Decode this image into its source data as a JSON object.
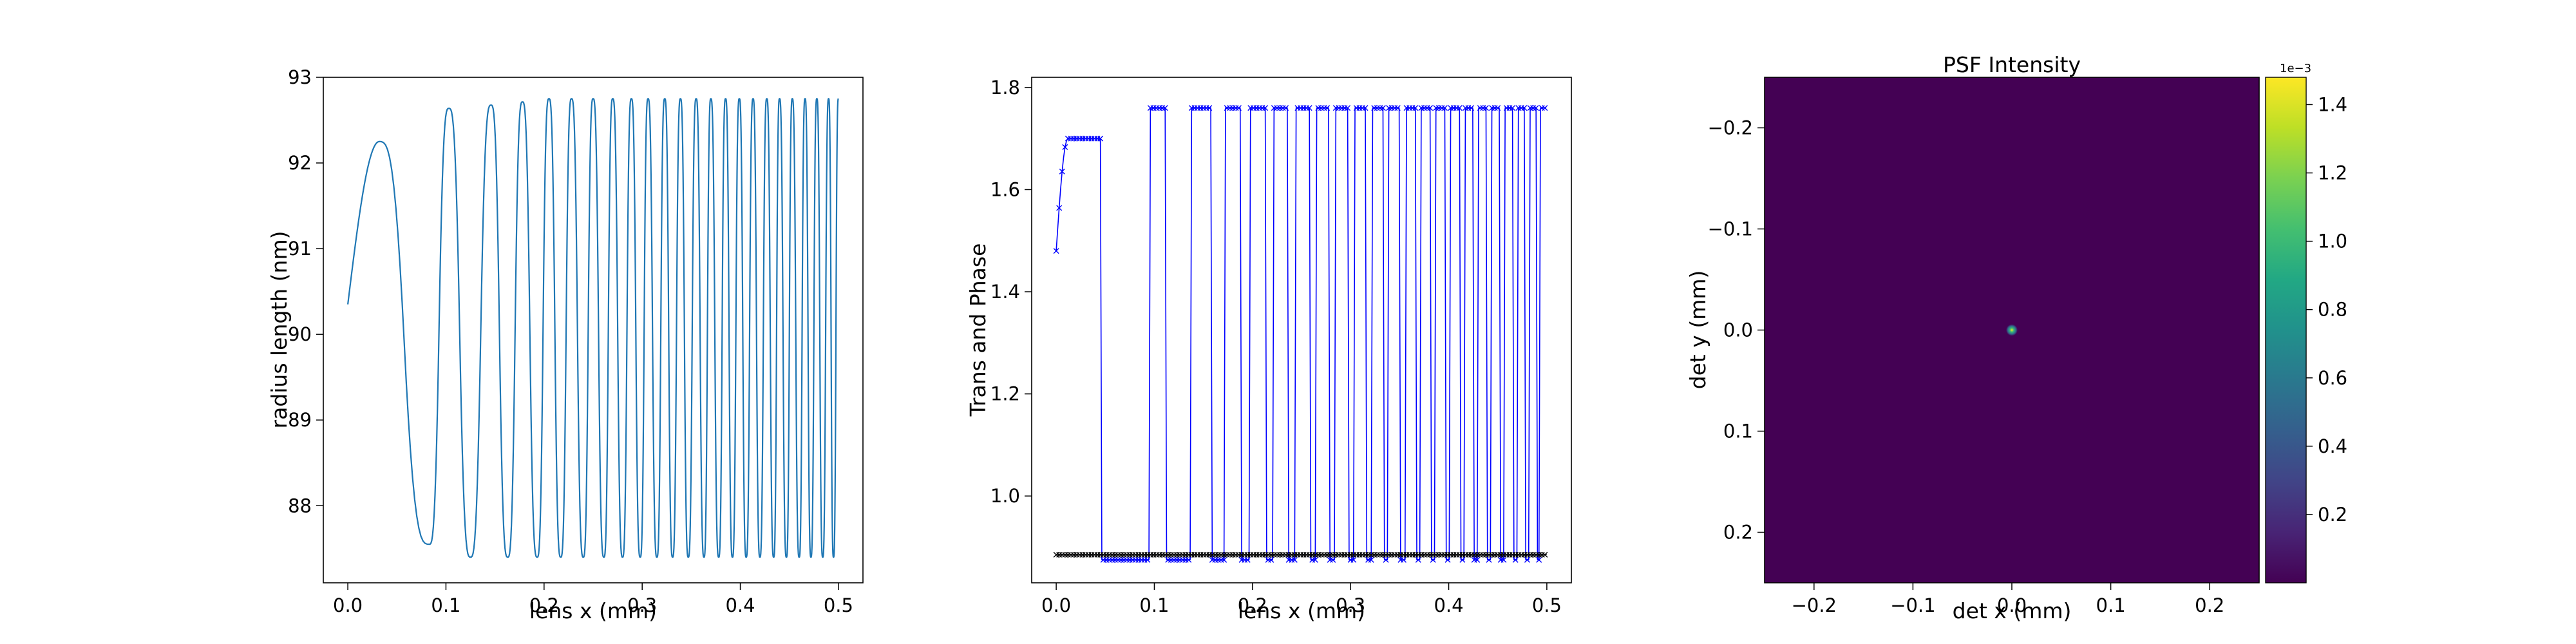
{
  "chart_data": [
    {
      "type": "line",
      "xlabel": "lens x (mm)",
      "ylabel": "radius length (nm)",
      "xlim": [
        -0.025,
        0.525
      ],
      "ylim": [
        87.1,
        93.0
      ],
      "xticks": [
        0.0,
        0.1,
        0.2,
        0.3,
        0.4,
        0.5
      ],
      "xtick_labels": [
        "0.0",
        "0.1",
        "0.2",
        "0.3",
        "0.4",
        "0.5"
      ],
      "yticks": [
        88,
        89,
        90,
        91,
        92,
        93
      ],
      "ytick_labels": [
        "88",
        "89",
        "90",
        "91",
        "92",
        "93"
      ],
      "grid": false,
      "series": [
        {
          "color": "#1f77b4",
          "style": "chirp oscillation",
          "x_start": 0.0,
          "x_end": 0.5,
          "start_value": 90.35,
          "min": 87.4,
          "max": 92.75,
          "first_peak": {
            "x": 0.032,
            "y": 92.25
          },
          "approx_peaks_x": [
            0.032,
            0.103,
            0.146,
            0.178,
            0.205,
            0.228,
            0.25,
            0.27,
            0.289,
            0.306,
            0.323,
            0.339,
            0.355,
            0.37,
            0.385,
            0.399,
            0.413,
            0.427,
            0.44,
            0.453,
            0.466,
            0.478,
            0.49,
            0.5
          ],
          "approx_troughs_x": [
            0.083,
            0.125,
            0.163,
            0.193,
            0.217,
            0.24,
            0.261,
            0.28,
            0.298,
            0.315,
            0.331,
            0.347,
            0.363,
            0.378,
            0.392,
            0.406,
            0.42,
            0.434,
            0.447,
            0.46,
            0.472,
            0.484,
            0.495
          ]
        }
      ]
    },
    {
      "type": "line",
      "xlabel": "lens x (mm)",
      "ylabel": "Trans and Phase",
      "xlim": [
        -0.025,
        0.525
      ],
      "ylim": [
        0.83,
        1.82
      ],
      "xticks": [
        0.0,
        0.1,
        0.2,
        0.3,
        0.4,
        0.5
      ],
      "xtick_labels": [
        "0.0",
        "0.1",
        "0.2",
        "0.3",
        "0.4",
        "0.5"
      ],
      "yticks": [
        1.0,
        1.2,
        1.4,
        1.6,
        1.8
      ],
      "ytick_labels": [
        "1.0",
        "1.2",
        "1.4",
        "1.6",
        "1.8"
      ],
      "grid": false,
      "series": [
        {
          "color": "#0000ff",
          "marker": "x",
          "style": "square-wave oscillation",
          "start_value": 1.48,
          "high": 1.76,
          "low": 0.875,
          "high_intervals_x": [
            [
              0.0,
              0.045
            ],
            [
              0.095,
              0.112
            ],
            [
              0.138,
              0.158
            ],
            [
              0.172,
              0.188
            ],
            [
              0.198,
              0.214
            ],
            [
              0.222,
              0.236
            ],
            [
              0.244,
              0.258
            ],
            [
              0.265,
              0.278
            ],
            [
              0.285,
              0.297
            ],
            [
              0.304,
              0.316
            ],
            [
              0.322,
              0.333
            ],
            [
              0.339,
              0.35
            ],
            [
              0.356,
              0.366
            ],
            [
              0.372,
              0.382
            ],
            [
              0.387,
              0.397
            ],
            [
              0.402,
              0.411
            ],
            [
              0.416,
              0.425
            ],
            [
              0.43,
              0.439
            ],
            [
              0.444,
              0.452
            ],
            [
              0.457,
              0.465
            ],
            [
              0.47,
              0.477
            ],
            [
              0.482,
              0.489
            ],
            [
              0.493,
              0.5
            ]
          ]
        },
        {
          "color": "#000000",
          "marker": "x",
          "style": "flat",
          "value": 0.885
        }
      ]
    },
    {
      "type": "heatmap",
      "title": "PSF Intensity",
      "xlabel": "det x (mm)",
      "ylabel": "det y (mm)",
      "xlim": [
        -0.25,
        0.25
      ],
      "ylim": [
        0.25,
        -0.25
      ],
      "xticks": [
        -0.2,
        -0.1,
        0.0,
        0.1,
        0.2
      ],
      "xtick_labels": [
        "−0.2",
        "−0.1",
        "0.0",
        "0.1",
        "0.2"
      ],
      "yticks": [
        -0.2,
        -0.1,
        0.0,
        0.1,
        0.2
      ],
      "ytick_labels": [
        "−0.2",
        "−0.1",
        "0.0",
        "0.1",
        "0.2"
      ],
      "colormap": "viridis",
      "background_color": "#440154",
      "spot": {
        "x": 0.0,
        "y": 0.0,
        "peak": 0.00145
      },
      "colorbar": {
        "range": [
          0.0,
          1.48
        ],
        "ticks": [
          0.2,
          0.4,
          0.6,
          0.8,
          1.0,
          1.2,
          1.4
        ],
        "tick_labels": [
          "0.2",
          "0.4",
          "0.6",
          "0.8",
          "1.0",
          "1.2",
          "1.4"
        ],
        "offset_label": "1e−3"
      }
    }
  ]
}
